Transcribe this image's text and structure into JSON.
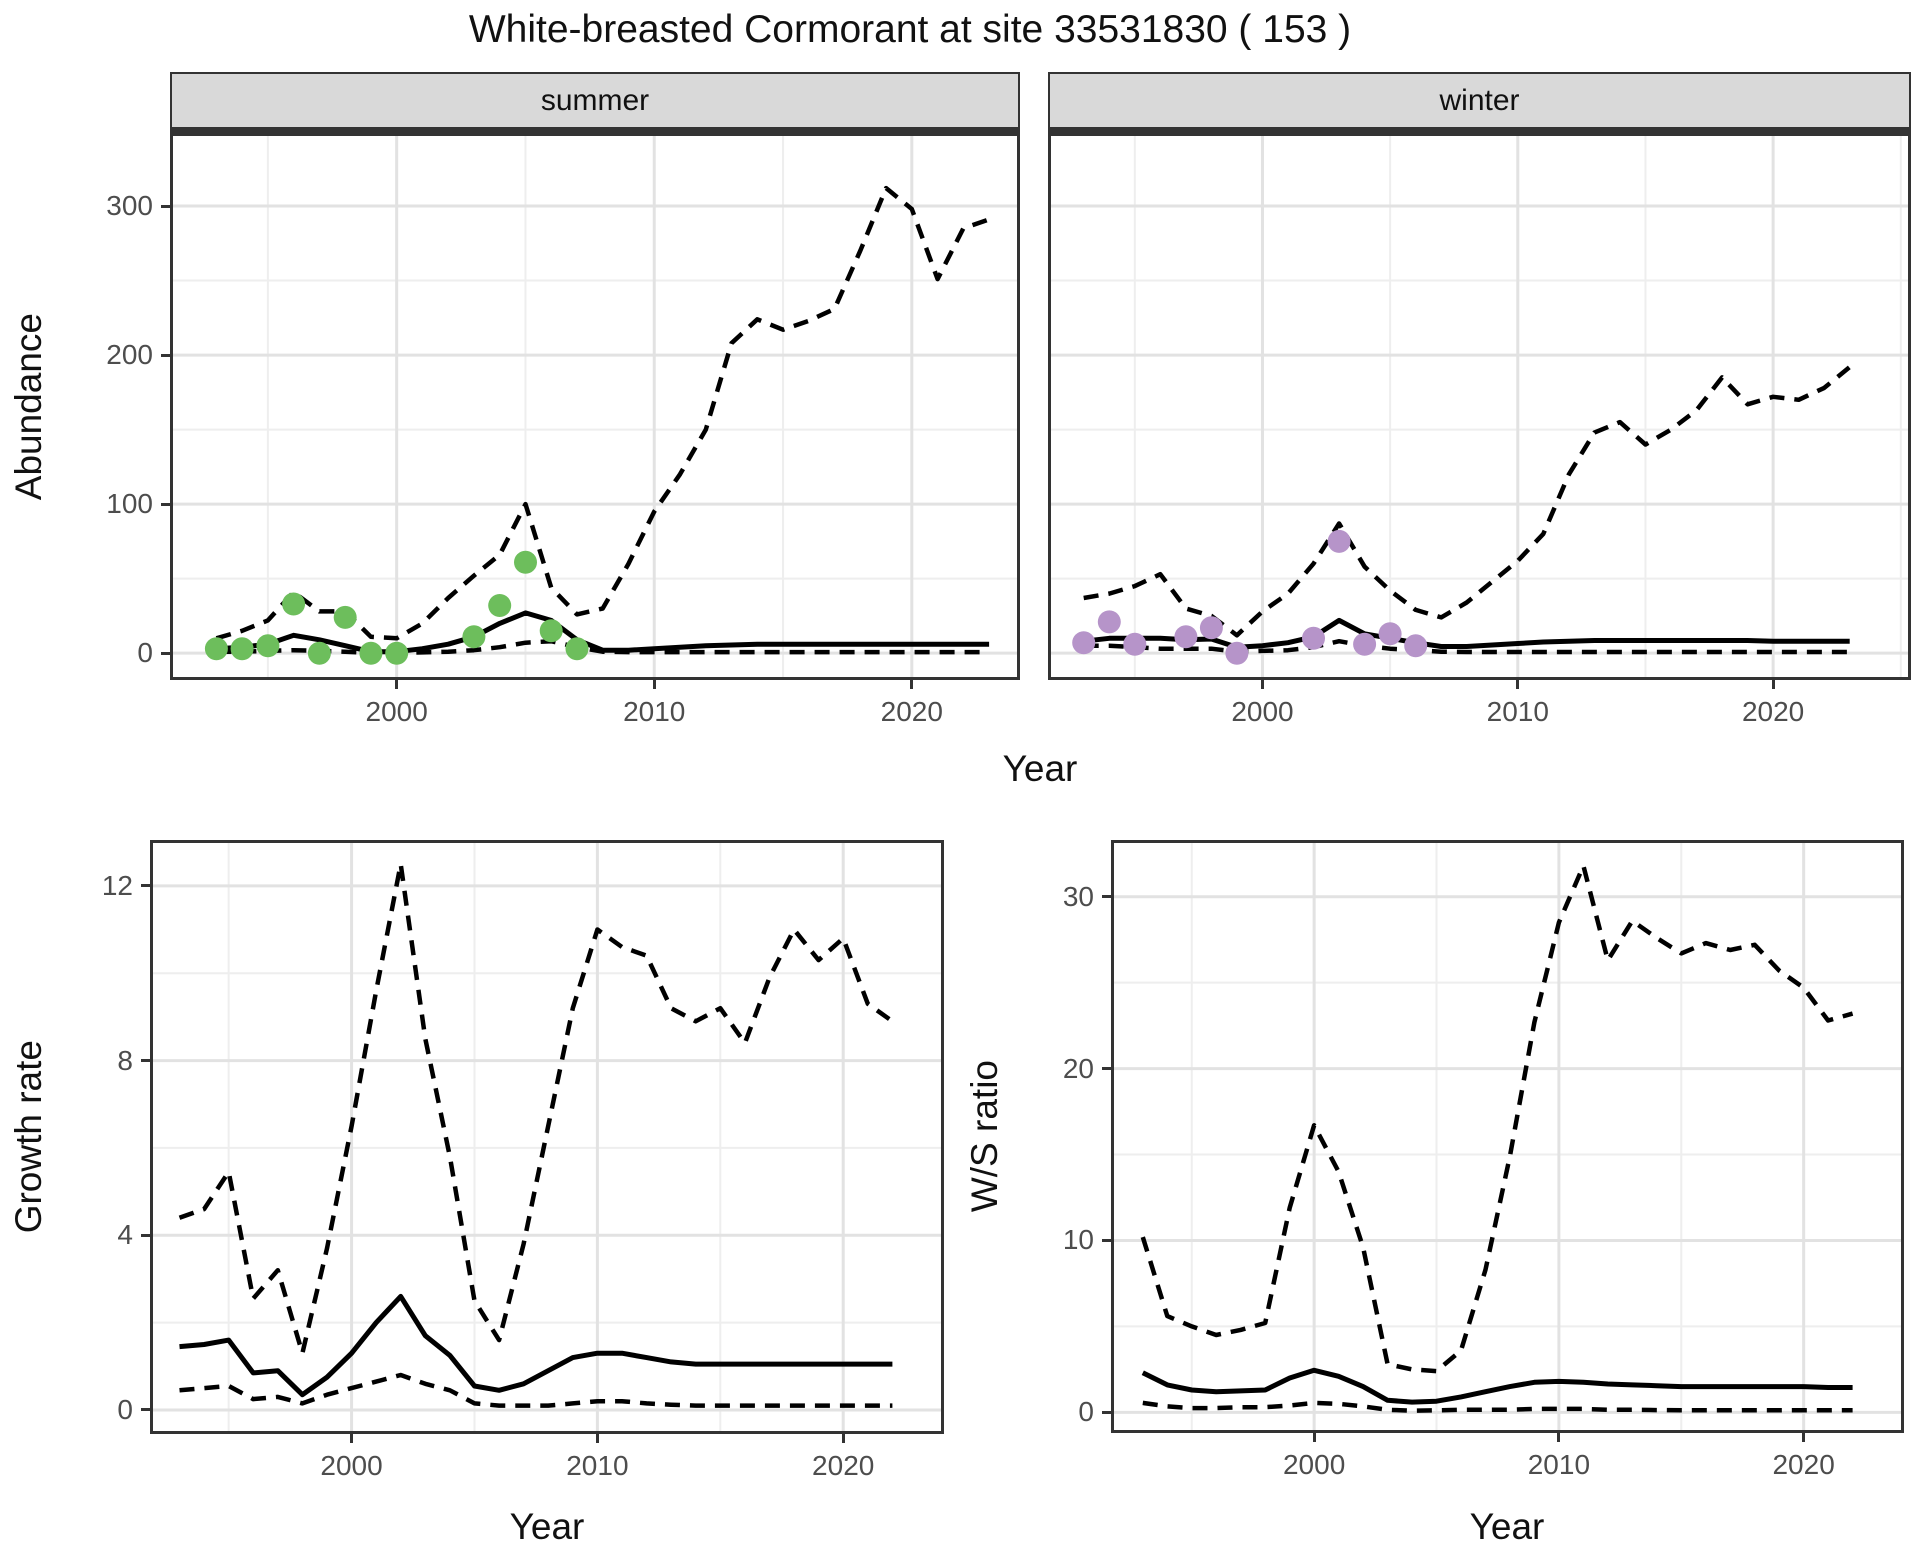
{
  "title": "White-breasted Cormorant at site 33531830 ( 153 )",
  "colors": {
    "summer_point": "#6dbe5c",
    "winter_point": "#b694c9",
    "median_line": "#000000",
    "ci_line": "#000000",
    "strip_bg": "#d9d9d9",
    "panel_border": "#333333",
    "grid_major": "#e2e2e2",
    "grid_minor": "#eeeeee",
    "tick_text": "#4d4d4d"
  },
  "chart_data": [
    {
      "id": "abundance",
      "type": "line",
      "ylabel": "Abundance",
      "xlabel": "Year",
      "x_ticks": [
        2000,
        2010,
        2020
      ],
      "x_minor": [
        1995,
        2005,
        2015,
        2025
      ],
      "y_ticks": [
        0,
        100,
        200,
        300
      ],
      "y_minor": [
        50,
        150,
        250,
        350
      ],
      "legend": "none",
      "grid": true,
      "years": [
        1993,
        1994,
        1995,
        1996,
        1997,
        1998,
        1999,
        2000,
        2001,
        2002,
        2003,
        2004,
        2005,
        2006,
        2007,
        2008,
        2009,
        2010,
        2011,
        2012,
        2013,
        2014,
        2015,
        2016,
        2017,
        2018,
        2019,
        2020,
        2021,
        2022,
        2023
      ],
      "facets": [
        {
          "label": "summer",
          "xlim": [
            1991.2,
            2024.2
          ],
          "ylim": [
            -18,
            349
          ],
          "upper": [
            10,
            15,
            22,
            41,
            28,
            28,
            11,
            10,
            20,
            37,
            52,
            66,
            100,
            44,
            26,
            30,
            60,
            95,
            120,
            150,
            208,
            224,
            217,
            223,
            231,
            270,
            312,
            298,
            251,
            285,
            291
          ],
          "median": [
            3,
            4,
            6,
            12,
            9,
            5,
            1,
            1,
            3,
            6,
            11,
            20,
            27,
            22,
            9,
            2,
            2,
            3,
            4,
            5,
            5.5,
            6,
            6,
            6,
            6,
            6,
            6,
            6,
            6,
            6,
            6
          ],
          "lower": [
            1,
            1,
            1.5,
            2,
            1.5,
            1,
            0.2,
            0.2,
            0.5,
            1,
            2,
            4,
            7,
            8,
            4,
            1,
            0.7,
            0.7,
            0.7,
            0.7,
            0.7,
            0.7,
            0.7,
            0.7,
            0.7,
            0.7,
            0.7,
            0.7,
            0.7,
            0.7,
            0.7
          ],
          "points": {
            "color": "#6dbe5c",
            "years": [
              1993,
              1994,
              1995,
              1996,
              1997,
              1998,
              1999,
              2000,
              2003,
              2004,
              2005,
              2006,
              2007
            ],
            "values": [
              3,
              3,
              5,
              33,
              0,
              24,
              0,
              0,
              11,
              32,
              61,
              15,
              3
            ]
          }
        },
        {
          "label": "winter",
          "xlim": [
            1991.6,
            2025.4
          ],
          "ylim": [
            -18,
            349
          ],
          "upper": [
            37,
            40,
            45,
            53,
            30,
            25,
            12,
            28,
            40,
            60,
            87,
            58,
            42,
            29,
            24,
            34,
            48,
            62,
            80,
            120,
            148,
            155,
            140,
            150,
            163,
            185,
            167,
            172,
            170,
            178,
            192
          ],
          "median": [
            8,
            10,
            10,
            10,
            9,
            9.5,
            4,
            5,
            7,
            11,
            22,
            13,
            10,
            7,
            4.5,
            4.5,
            5.5,
            6.5,
            7.5,
            8,
            8.5,
            8.5,
            8.5,
            8.5,
            8.5,
            8.5,
            8.5,
            8,
            8,
            8,
            8
          ],
          "lower": [
            5,
            5,
            4,
            3,
            3,
            3,
            1,
            1.5,
            2,
            4,
            8,
            5,
            3,
            2,
            1,
            0.8,
            0.8,
            0.8,
            0.8,
            0.8,
            0.8,
            0.8,
            0.8,
            0.8,
            0.8,
            0.8,
            0.8,
            0.8,
            0.8,
            0.8,
            0.8
          ],
          "points": {
            "color": "#b694c9",
            "years": [
              1993,
              1994,
              1995,
              1997,
              1998,
              1999,
              2002,
              2003,
              2004,
              2005,
              2006
            ],
            "values": [
              7,
              21,
              6,
              11,
              17,
              0,
              10,
              75,
              6,
              13,
              5
            ]
          }
        }
      ]
    },
    {
      "id": "growth",
      "type": "line",
      "ylabel": "Growth rate",
      "xlabel": "Year",
      "x_ticks": [
        2000,
        2010,
        2020
      ],
      "x_minor": [
        1995,
        2005,
        2015,
        2025
      ],
      "y_ticks": [
        0,
        4,
        8,
        12
      ],
      "y_minor": [
        2,
        6,
        10
      ],
      "legend": "none",
      "grid": true,
      "xlim": [
        1991.8,
        2024.1
      ],
      "ylim": [
        -0.55,
        13.05
      ],
      "years": [
        1993,
        1994,
        1995,
        1996,
        1997,
        1998,
        1999,
        2000,
        2001,
        2002,
        2003,
        2004,
        2005,
        2006,
        2007,
        2008,
        2009,
        2010,
        2011,
        2012,
        2013,
        2014,
        2015,
        2016,
        2017,
        2018,
        2019,
        2020,
        2021,
        2022
      ],
      "upper": [
        4.4,
        4.6,
        5.45,
        2.55,
        3.2,
        1.3,
        3.7,
        6.5,
        9.6,
        12.5,
        8.5,
        5.8,
        2.5,
        1.6,
        3.8,
        6.5,
        9.2,
        11.0,
        10.6,
        10.4,
        9.2,
        8.9,
        9.2,
        8.4,
        9.9,
        11.0,
        10.3,
        10.8,
        9.3,
        8.9
      ],
      "median": [
        1.45,
        1.5,
        1.6,
        0.85,
        0.9,
        0.35,
        0.75,
        1.3,
        2.0,
        2.6,
        1.7,
        1.25,
        0.55,
        0.45,
        0.6,
        0.9,
        1.2,
        1.3,
        1.3,
        1.2,
        1.1,
        1.05,
        1.05,
        1.05,
        1.05,
        1.05,
        1.05,
        1.05,
        1.05,
        1.05
      ],
      "lower": [
        0.45,
        0.5,
        0.55,
        0.25,
        0.3,
        0.15,
        0.35,
        0.5,
        0.65,
        0.8,
        0.6,
        0.45,
        0.15,
        0.1,
        0.1,
        0.1,
        0.15,
        0.2,
        0.2,
        0.15,
        0.12,
        0.1,
        0.1,
        0.1,
        0.1,
        0.1,
        0.1,
        0.1,
        0.1,
        0.1
      ]
    },
    {
      "id": "ws",
      "type": "line",
      "ylabel": "W/S ratio",
      "xlabel": "Year",
      "x_ticks": [
        2000,
        2010,
        2020
      ],
      "x_minor": [
        1995,
        2005,
        2015,
        2025
      ],
      "y_ticks": [
        0,
        10,
        20,
        30
      ],
      "y_minor": [
        5,
        15,
        25
      ],
      "legend": "none",
      "grid": true,
      "xlim": [
        1991.7,
        2024.1
      ],
      "ylim": [
        -1.2,
        33.3
      ],
      "years": [
        1993,
        1994,
        1995,
        1996,
        1997,
        1998,
        1999,
        2000,
        2001,
        2002,
        2003,
        2004,
        2005,
        2006,
        2007,
        2008,
        2009,
        2010,
        2011,
        2012,
        2013,
        2014,
        2015,
        2016,
        2017,
        2018,
        2019,
        2020,
        2021,
        2022
      ],
      "upper": [
        10.2,
        5.6,
        5.0,
        4.5,
        4.8,
        5.2,
        11.9,
        16.7,
        14.0,
        9.6,
        2.8,
        2.5,
        2.4,
        3.6,
        8.3,
        14.9,
        22.7,
        28.5,
        31.8,
        26.3,
        28.6,
        27.6,
        26.7,
        27.3,
        26.9,
        27.2,
        25.7,
        24.7,
        22.8,
        23.2
      ],
      "median": [
        2.3,
        1.6,
        1.3,
        1.2,
        1.25,
        1.3,
        2.0,
        2.45,
        2.1,
        1.5,
        0.7,
        0.6,
        0.65,
        0.9,
        1.2,
        1.5,
        1.75,
        1.8,
        1.75,
        1.65,
        1.6,
        1.55,
        1.5,
        1.5,
        1.5,
        1.5,
        1.5,
        1.5,
        1.45,
        1.45
      ],
      "lower": [
        0.55,
        0.35,
        0.25,
        0.25,
        0.3,
        0.3,
        0.4,
        0.55,
        0.5,
        0.35,
        0.15,
        0.1,
        0.12,
        0.15,
        0.15,
        0.15,
        0.2,
        0.2,
        0.2,
        0.15,
        0.15,
        0.13,
        0.12,
        0.12,
        0.12,
        0.12,
        0.12,
        0.12,
        0.12,
        0.12
      ]
    }
  ]
}
